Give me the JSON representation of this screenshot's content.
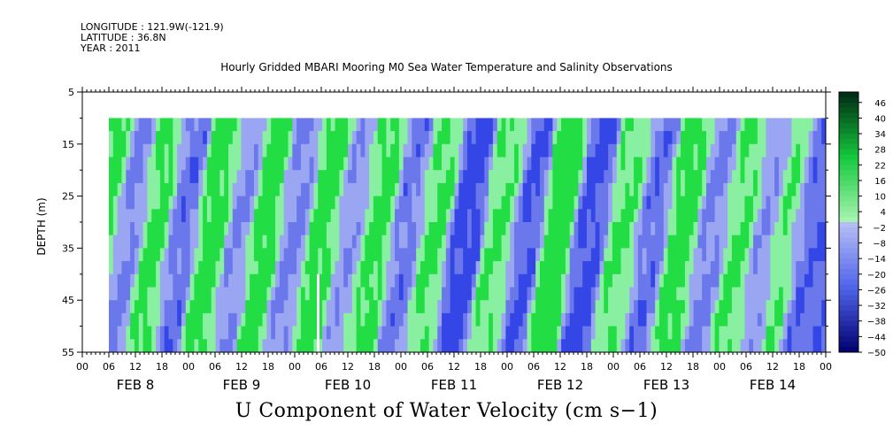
{
  "header": {
    "longitude": "LONGITUDE : 121.9W(-121.9)",
    "latitude": "LATITUDE : 36.8N",
    "year": "YEAR : 2011"
  },
  "chart_data": {
    "type": "heatmap",
    "title": "Hourly Gridded MBARI Mooring M0 Sea Water Temperature and Salinity Observations",
    "bottom_title": "U Component of Water Velocity (cm s−1)",
    "ylabel": "DEPTH (m)",
    "ylim": [
      55,
      5
    ],
    "data_depth_range": [
      10,
      55
    ],
    "y_ticks": [
      "5",
      "15",
      "25",
      "35",
      "45",
      "55"
    ],
    "x_hour_ticks": [
      "00",
      "06",
      "12",
      "18",
      "00",
      "06",
      "12",
      "18",
      "00",
      "06",
      "12",
      "18",
      "00",
      "06",
      "12",
      "18",
      "00",
      "06",
      "12",
      "18",
      "00",
      "06",
      "12",
      "18",
      "00",
      "06",
      "12",
      "18",
      "00"
    ],
    "x_day_labels": [
      "FEB  8",
      "FEB  9",
      "FEB 10",
      "FEB 11",
      "FEB 12",
      "FEB 13",
      "FEB 14"
    ],
    "data_start": "FEB 8 06:00",
    "data_end": "FEB 15 00:00",
    "colorbar": {
      "labels": [
        "46",
        "40",
        "34",
        "28",
        "22",
        "16",
        "10",
        "4",
        "−2",
        "−8",
        "−14",
        "−20",
        "−26",
        "−32",
        "−38",
        "−44",
        "−50"
      ],
      "min": -50,
      "max": 50
    },
    "colors": {
      "green_strong": "#22dd44",
      "green_light": "#88f0a0",
      "blue_light": "#9aa6f2",
      "blue_mid": "#6a78ec",
      "blue_strong": "#3446e6",
      "gap": "#ffffff"
    },
    "bands": [
      {
        "time": "FEB 8 08:00",
        "sign": "+",
        "peak": 20
      },
      {
        "time": "FEB 8 14:00",
        "sign": "-",
        "peak": -14
      },
      {
        "time": "FEB 8 20:00",
        "sign": "+",
        "peak": 18
      },
      {
        "time": "FEB 9 02:00",
        "sign": "-",
        "peak": -18
      },
      {
        "time": "FEB 9 09:00",
        "sign": "+",
        "peak": 20
      },
      {
        "time": "FEB 9 15:00",
        "sign": "-",
        "peak": -12
      },
      {
        "time": "FEB 9 21:00",
        "sign": "+",
        "peak": 22
      },
      {
        "time": "FEB 10 03:00",
        "sign": "-",
        "peak": -14
      },
      {
        "time": "FEB 10 10:00",
        "sign": "+",
        "peak": 20
      },
      {
        "time": "FEB 10 16:00",
        "sign": "-",
        "peak": -10
      },
      {
        "time": "FEB 10 22:00",
        "sign": "+",
        "peak": 18
      },
      {
        "time": "FEB 11 05:00",
        "sign": "-",
        "peak": -16
      },
      {
        "time": "FEB 11 11:00",
        "sign": "+",
        "peak": 16
      },
      {
        "time": "FEB 11 18:00",
        "sign": "-",
        "peak": -26
      },
      {
        "time": "FEB 12 02:00",
        "sign": "+",
        "peak": 14
      },
      {
        "time": "FEB 12 08:00",
        "sign": "-",
        "peak": -22
      },
      {
        "time": "FEB 12 15:00",
        "sign": "+",
        "peak": 24
      },
      {
        "time": "FEB 12 22:00",
        "sign": "-",
        "peak": -24
      },
      {
        "time": "FEB 13 06:00",
        "sign": "+",
        "peak": 14
      },
      {
        "time": "FEB 13 12:00",
        "sign": "-",
        "peak": -18
      },
      {
        "time": "FEB 13 19:00",
        "sign": "+",
        "peak": 20
      },
      {
        "time": "FEB 14 02:00",
        "sign": "-",
        "peak": -14
      },
      {
        "time": "FEB 14 08:00",
        "sign": "+",
        "peak": 16
      },
      {
        "time": "FEB 14 14:00",
        "sign": "-",
        "peak": -10
      },
      {
        "time": "FEB 14 19:00",
        "sign": "+",
        "peak": 16
      },
      {
        "time": "FEB 14 23:00",
        "sign": "-",
        "peak": -20
      }
    ]
  }
}
